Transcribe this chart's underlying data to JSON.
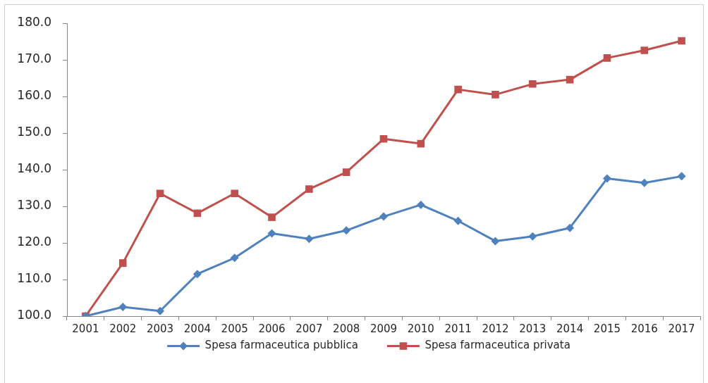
{
  "chart_data": {
    "type": "line",
    "categories": [
      "2001",
      "2002",
      "2003",
      "2004",
      "2005",
      "2006",
      "2007",
      "2008",
      "2009",
      "2010",
      "2011",
      "2012",
      "2013",
      "2014",
      "2015",
      "2016",
      "2017"
    ],
    "series": [
      {
        "name": "Spesa farmaceutica pubblica",
        "color": "#4f81bd",
        "marker": "diamond",
        "values": [
          100,
          102.5,
          101.4,
          111.5,
          115.9,
          122.6,
          121.1,
          123.4,
          127.2,
          130.4,
          126,
          120.5,
          121.8,
          124.1,
          137.6,
          136.4,
          138.2
        ]
      },
      {
        "name": "Spesa farmaceutica privata",
        "color": "#c0504d",
        "marker": "square",
        "values": [
          100,
          114.5,
          133.5,
          128.1,
          133.5,
          127,
          134.7,
          139.3,
          148.4,
          147.1,
          161.9,
          160.5,
          163.4,
          164.6,
          170.5,
          172.6,
          175.2
        ]
      }
    ],
    "ylim": [
      100,
      180
    ],
    "yticks": [
      {
        "value": 100,
        "label": "100.0"
      },
      {
        "value": 110,
        "label": "110.0"
      },
      {
        "value": 120,
        "label": "120.0"
      },
      {
        "value": 130,
        "label": "130.0"
      },
      {
        "value": 140,
        "label": "140.0"
      },
      {
        "value": 150,
        "label": "150.0"
      },
      {
        "value": 160,
        "label": "160.0"
      },
      {
        "value": 170,
        "label": "170.0"
      },
      {
        "value": 180,
        "label": "180.0"
      }
    ],
    "grid": false,
    "legend": "bottom",
    "line_style": "solid"
  }
}
